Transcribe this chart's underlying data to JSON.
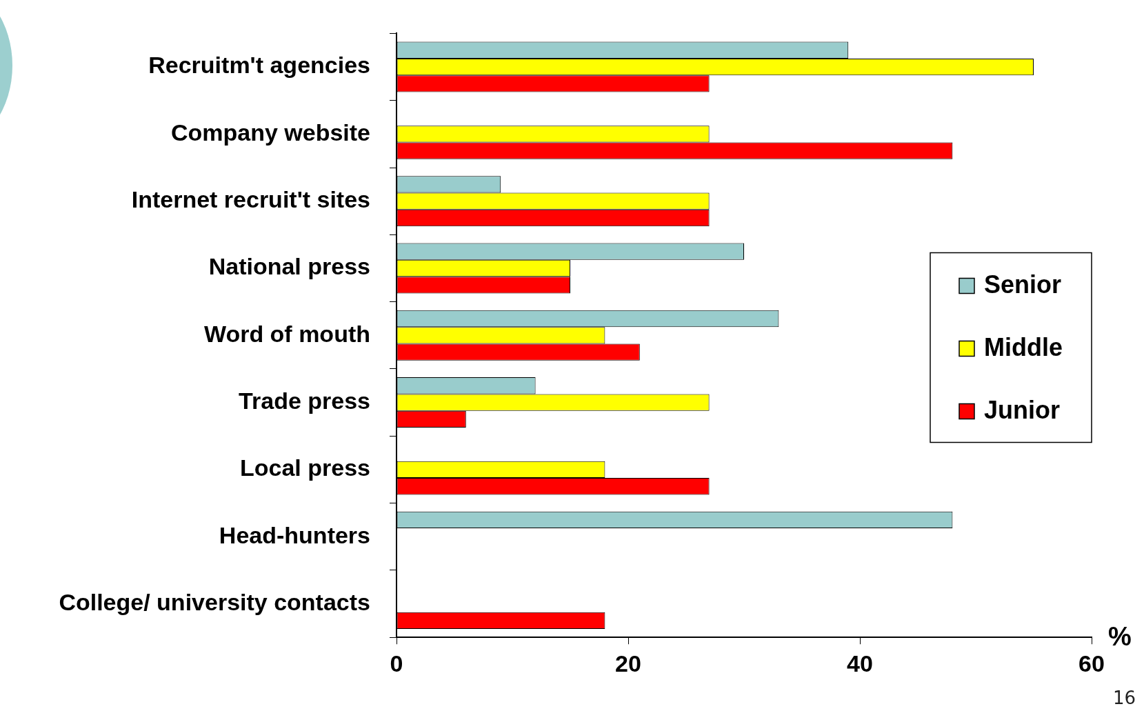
{
  "chart_data": {
    "type": "bar",
    "orientation": "horizontal",
    "xlabel": "%",
    "categories": [
      "Recruitm't agencies",
      "Company website",
      "Internet recruit't sites",
      "National press",
      "Word of mouth",
      "Trade press",
      "Local press",
      "Head-hunters",
      "College/ university contacts"
    ],
    "series": [
      {
        "name": "Senior",
        "color": "#99cccc",
        "values": [
          39,
          null,
          9,
          30,
          33,
          12,
          null,
          48,
          null
        ]
      },
      {
        "name": "Middle",
        "color": "#ffff00",
        "values": [
          55,
          27,
          27,
          15,
          18,
          27,
          18,
          null,
          null
        ]
      },
      {
        "name": "Junior",
        "color": "#ff0000",
        "values": [
          27,
          48,
          27,
          15,
          21,
          6,
          27,
          null,
          18
        ]
      }
    ],
    "xlim": [
      0,
      60
    ],
    "xticks": [
      0,
      20,
      40,
      60
    ],
    "grid": false,
    "legend": "right",
    "annotations": [
      "16"
    ]
  }
}
